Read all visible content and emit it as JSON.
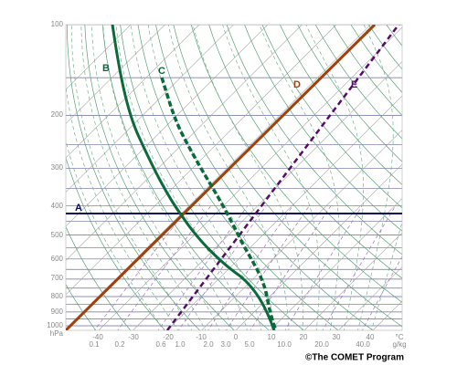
{
  "pressure_labels": [
    "100",
    "200",
    "300",
    "400",
    "500",
    "600",
    "700",
    "800",
    "900",
    "1000"
  ],
  "pressure_unit": "hPa",
  "temperature_labels": [
    "-40",
    "-30",
    "-20",
    "-10",
    "0",
    "10",
    "20",
    "30",
    "40"
  ],
  "temperature_unit": "°C",
  "mixing_ratio_labels": [
    "0.1",
    "0.2",
    "0.6",
    "1.0",
    "2.0",
    "3.0",
    "5.0",
    "10.0",
    "20.0",
    "40.0"
  ],
  "mixing_ratio_unit": "g/kg",
  "line_labels": [
    "A",
    "B",
    "C",
    "D",
    "E"
  ],
  "credit": "©The COMET Program"
}
